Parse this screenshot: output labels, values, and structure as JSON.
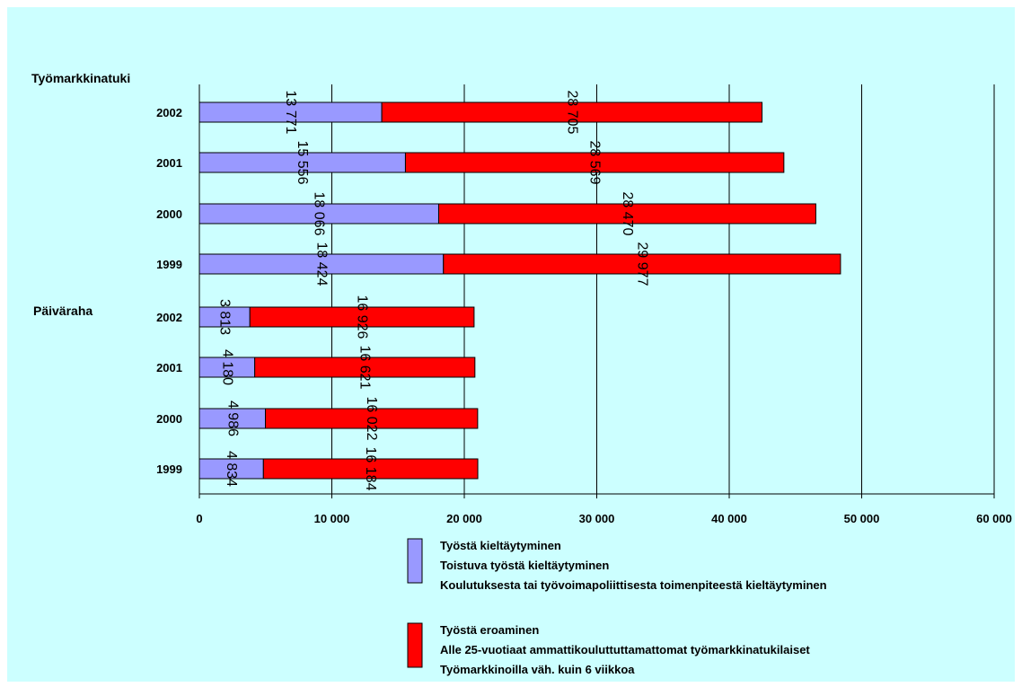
{
  "chart_data": {
    "type": "bar",
    "orientation": "horizontal",
    "stacked": true,
    "groups": [
      {
        "label": "Työmarkkinatuki",
        "categories": [
          "2002",
          "2001",
          "2000",
          "1999"
        ]
      },
      {
        "label": "Päiväraha",
        "categories": [
          "2002",
          "2001",
          "2000",
          "1999"
        ]
      }
    ],
    "series": [
      {
        "label_lines": [
          "Työstä kieltäytyminen",
          "Toistuva työstä kieltäytyminen",
          "Koulutuksesta tai työvoimapoliittisesta toimenpiteestä kieltäytyminen"
        ],
        "color": "#9999ff",
        "values": [
          13771,
          15556,
          18066,
          18424,
          3813,
          4180,
          4986,
          4834
        ],
        "labels": [
          "13 771",
          "15 556",
          "18 066",
          "18 424",
          "3 813",
          "4 180",
          "4 986",
          "4 834"
        ]
      },
      {
        "label_lines": [
          "Työstä eroaminen",
          "Alle 25-vuotiaat ammattikouluttuttamattomat työmarkkinatukilaiset",
          "Työmarkkinoilla väh. kuin 6 viikkoa"
        ],
        "color": "#ff0000",
        "values": [
          28705,
          28569,
          28470,
          29977,
          16926,
          16621,
          16022,
          16184
        ],
        "labels": [
          "28 705",
          "28 569",
          "28 470",
          "29 977",
          "16 926",
          "16 621",
          "16 022",
          "16 184"
        ]
      }
    ],
    "xlim": [
      0,
      60000
    ],
    "xticks": [
      0,
      10000,
      20000,
      30000,
      40000,
      50000,
      60000
    ],
    "xtick_labels": [
      "0",
      "10 000",
      "20 000",
      "30 000",
      "40 000",
      "50 000",
      "60 000"
    ],
    "grid": true,
    "legend_position": "bottom",
    "plot_background": "#ccffff"
  }
}
